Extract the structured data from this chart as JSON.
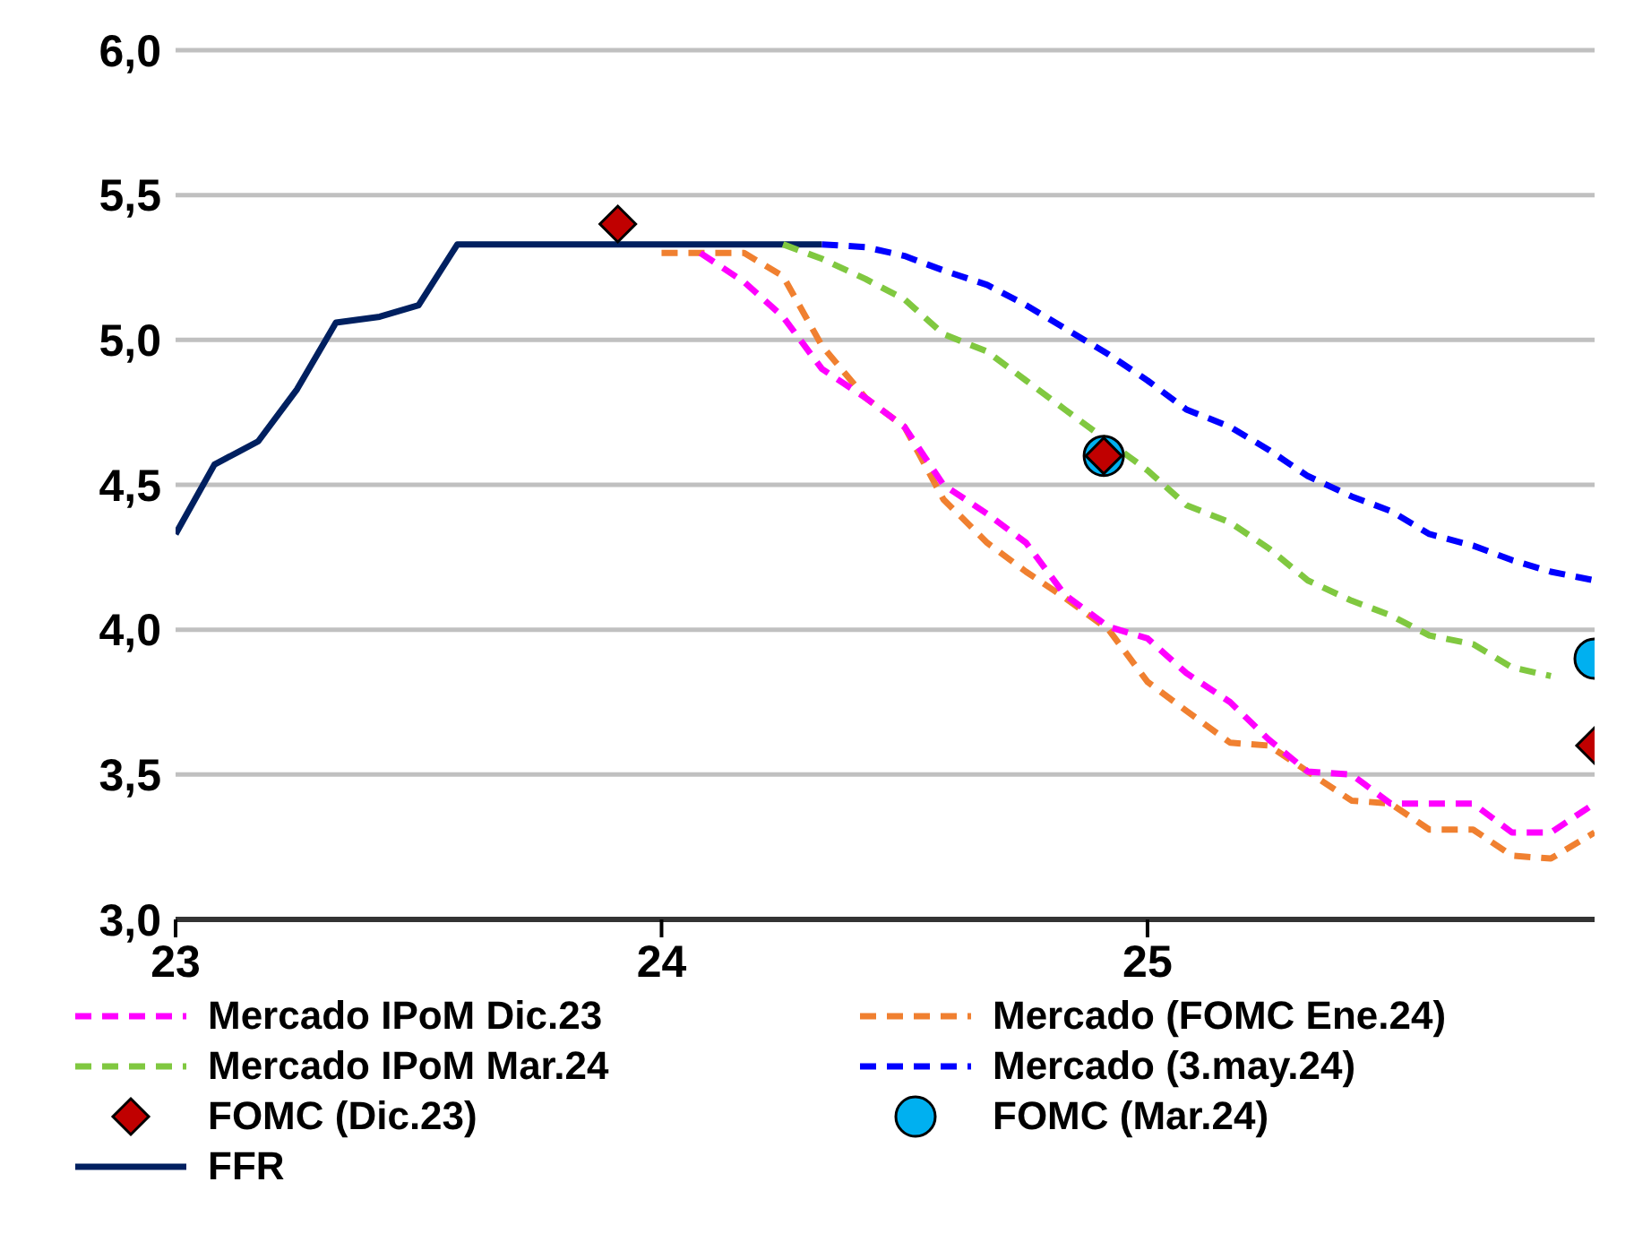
{
  "chart_data": {
    "type": "line",
    "xlim": [
      23,
      25.92
    ],
    "xticks": [
      23,
      24,
      25
    ],
    "ylim": [
      3,
      6
    ],
    "yticks": [
      {
        "value": 3,
        "label": "3,0"
      },
      {
        "value": 3.5,
        "label": "3,5"
      },
      {
        "value": 4,
        "label": "4,0"
      },
      {
        "value": 4.5,
        "label": "4,5"
      },
      {
        "value": 5,
        "label": "5,0"
      },
      {
        "value": 5.5,
        "label": "5,5"
      },
      {
        "value": 6,
        "label": "6,0"
      }
    ],
    "grid": "y",
    "legend": "bottom",
    "series": [
      {
        "name": "Mercado IPoM Dic.23",
        "line_style": "dashed",
        "color": "#ff00ff",
        "x": [
          24.08,
          24.17,
          24.25,
          24.33,
          24.42,
          24.5,
          24.58,
          24.67,
          24.75,
          24.83,
          24.92,
          25,
          25.08,
          25.17,
          25.25,
          25.33,
          25.42,
          25.5,
          25.58,
          25.67,
          25.75,
          25.83,
          25.92
        ],
        "values": [
          5.3,
          5.2,
          5.08,
          4.9,
          4.8,
          4.7,
          4.5,
          4.4,
          4.3,
          4.12,
          4.01,
          3.97,
          3.85,
          3.75,
          3.62,
          3.51,
          3.5,
          3.4,
          3.4,
          3.4,
          3.3,
          3.3,
          3.4
        ]
      },
      {
        "name": "Mercado (FOMC Ene.24)",
        "line_style": "dashed",
        "color": "#f08030",
        "x": [
          24,
          24.08,
          24.17,
          24.25,
          24.33,
          24.42,
          24.5,
          24.58,
          24.67,
          24.75,
          24.83,
          24.92,
          25,
          25.08,
          25.17,
          25.25,
          25.33,
          25.42,
          25.5,
          25.58,
          25.67,
          25.75,
          25.83,
          25.92
        ],
        "values": [
          5.3,
          5.3,
          5.3,
          5.22,
          4.98,
          4.8,
          4.7,
          4.45,
          4.3,
          4.2,
          4.11,
          4.0,
          3.82,
          3.72,
          3.61,
          3.6,
          3.51,
          3.41,
          3.4,
          3.31,
          3.31,
          3.22,
          3.21,
          3.3
        ]
      },
      {
        "name": "Mercado IPoM Mar.24",
        "line_style": "dashed",
        "color": "#80c840",
        "x": [
          24.25,
          24.33,
          24.42,
          24.5,
          24.58,
          24.67,
          24.75,
          24.83,
          25,
          25.08,
          25.17,
          25.25,
          25.33,
          25.42,
          25.5,
          25.58,
          25.67,
          25.75,
          25.83
        ],
        "values": [
          5.33,
          5.28,
          5.21,
          5.14,
          5.02,
          4.96,
          4.86,
          4.76,
          4.55,
          4.43,
          4.37,
          4.28,
          4.17,
          4.1,
          4.05,
          3.98,
          3.95,
          3.87,
          3.84
        ]
      },
      {
        "name": "Mercado (3.may.24)",
        "line_style": "dashed",
        "color": "#0000ff",
        "x": [
          24.33,
          24.42,
          24.5,
          24.58,
          24.67,
          24.75,
          24.83,
          24.92,
          25,
          25.08,
          25.17,
          25.25,
          25.33,
          25.42,
          25.5,
          25.58,
          25.67,
          25.75,
          25.83,
          25.92
        ],
        "values": [
          5.33,
          5.32,
          5.29,
          5.24,
          5.19,
          5.12,
          5.04,
          4.95,
          4.86,
          4.76,
          4.7,
          4.62,
          4.53,
          4.46,
          4.41,
          4.33,
          4.29,
          4.24,
          4.2,
          4.17
        ]
      },
      {
        "name": "FOMC (Dic.23)",
        "type": "scatter",
        "marker": "diamond",
        "color": "#c00000",
        "x": [
          23.91,
          24.91,
          25.92
        ],
        "values": [
          5.4,
          4.6,
          3.6
        ]
      },
      {
        "name": "FOMC (Mar.24)",
        "type": "scatter",
        "marker": "circle",
        "color": "#00b0f0",
        "x": [
          24.91,
          25.92
        ],
        "values": [
          4.6,
          3.9
        ]
      },
      {
        "name": "FFR",
        "line_style": "solid",
        "color": "#002060",
        "x": [
          23,
          23.08,
          23.17,
          23.25,
          23.33,
          23.42,
          23.5,
          23.58,
          23.67,
          23.75,
          23.83,
          23.92,
          24,
          24.08,
          24.17,
          24.25,
          24.33
        ],
        "values": [
          4.33,
          4.57,
          4.65,
          4.83,
          5.06,
          5.08,
          5.12,
          5.33,
          5.33,
          5.33,
          5.33,
          5.33,
          5.33,
          5.33,
          5.33,
          5.33,
          5.33
        ]
      }
    ]
  }
}
